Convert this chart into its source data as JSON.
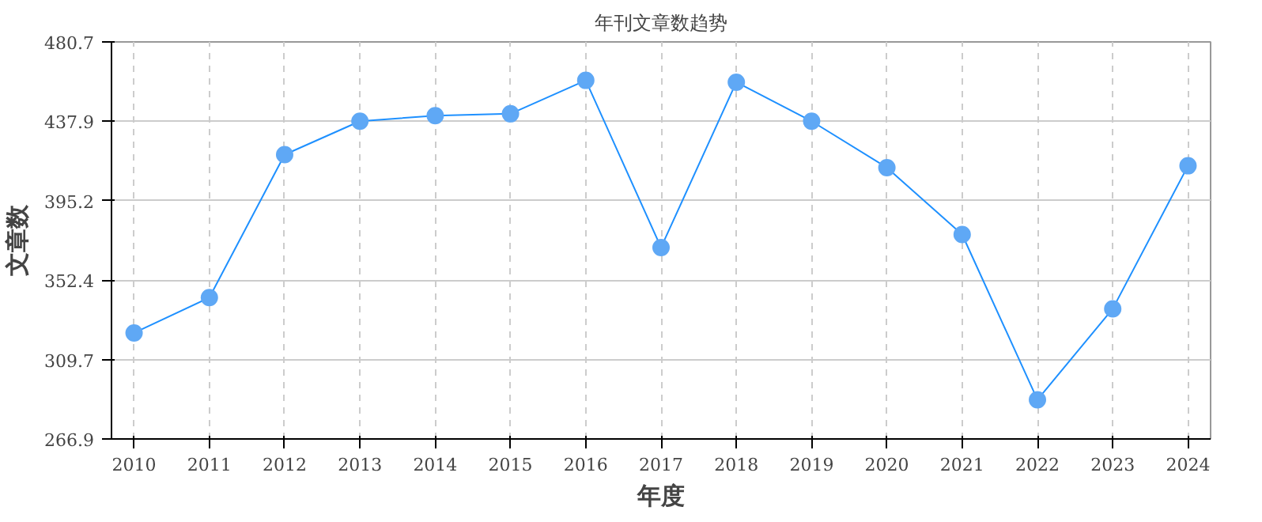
{
  "chart_data": {
    "type": "line",
    "title": "年刊文章数趋势",
    "xlabel": "年度",
    "ylabel": "文章数",
    "categories": [
      "2010",
      "2011",
      "2012",
      "2013",
      "2014",
      "2015",
      "2016",
      "2017",
      "2018",
      "2019",
      "2020",
      "2021",
      "2022",
      "2023",
      "2024"
    ],
    "series": [
      {
        "color": "#1e90ff",
        "values": [
          324,
          343,
          420,
          438,
          441,
          442,
          460,
          370,
          459,
          438,
          413,
          377,
          288,
          337,
          414
        ]
      }
    ],
    "ylim": [
      266.9,
      480.7
    ],
    "yticks": [
      266.9,
      309.7,
      352.4,
      395.2,
      437.9,
      480.7
    ],
    "grid": true,
    "marker": "circle",
    "line_style": "solid"
  }
}
